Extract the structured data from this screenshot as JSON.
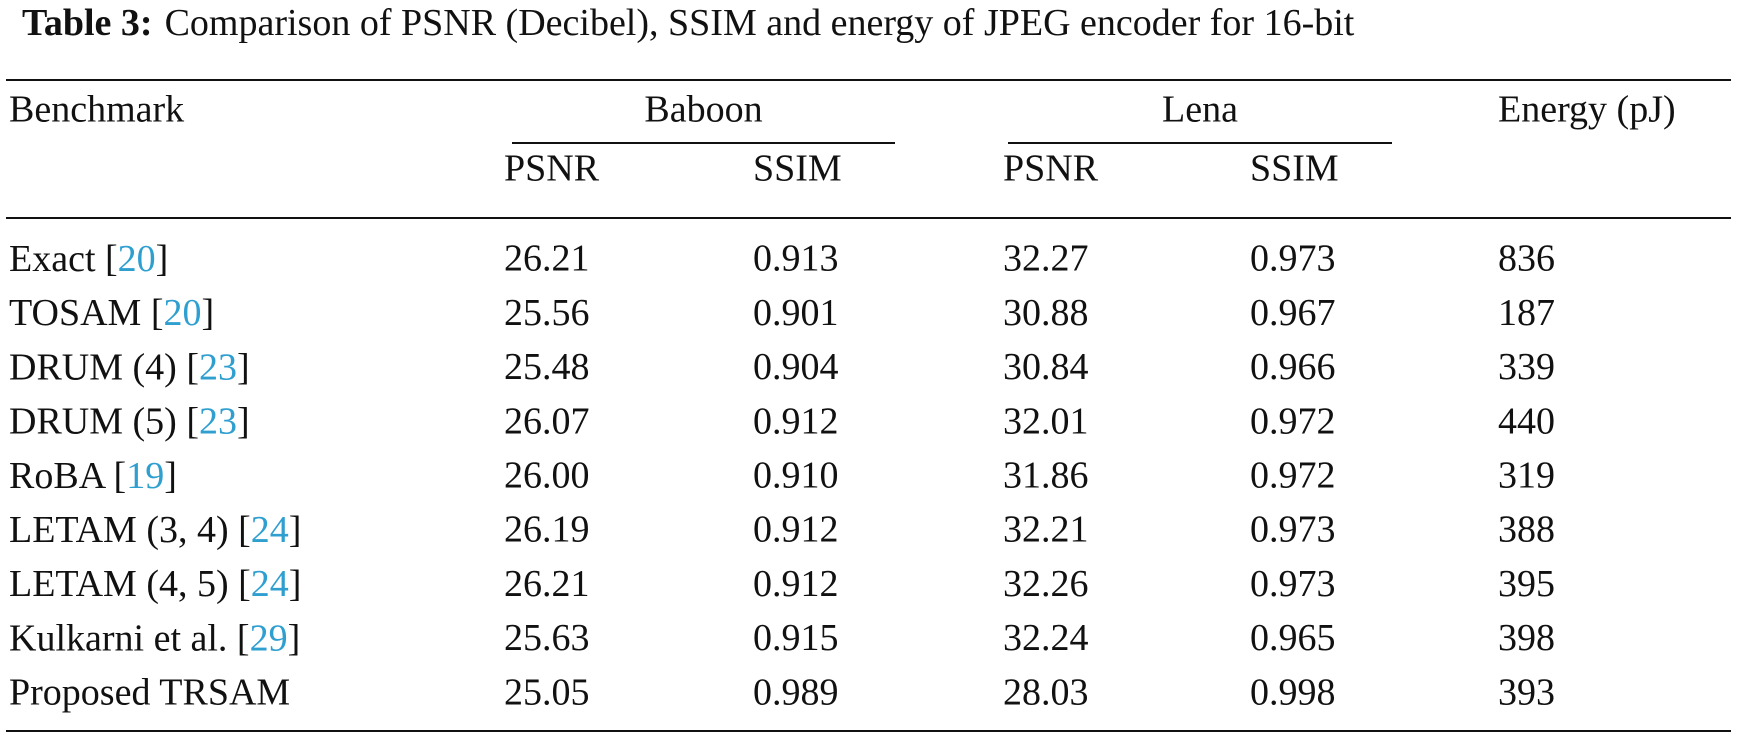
{
  "caption": {
    "label": "Table 3:",
    "text": "Comparison of PSNR (Decibel), SSIM and energy of JPEG encoder for 16-bit"
  },
  "table": {
    "header": {
      "benchmark": "Benchmark",
      "groups": [
        {
          "name": "Baboon",
          "columns": [
            "PSNR",
            "SSIM"
          ]
        },
        {
          "name": "Lena",
          "columns": [
            "PSNR",
            "SSIM"
          ]
        }
      ],
      "energy": "Energy (pJ)"
    },
    "rows": [
      {
        "label": [
          "Exact [",
          "20",
          "]"
        ],
        "values": [
          "26.21",
          "0.913",
          "32.27",
          "0.973",
          "836"
        ]
      },
      {
        "label": [
          "TOSAM [",
          "20",
          "]"
        ],
        "values": [
          "25.56",
          "0.901",
          "30.88",
          "0.967",
          "187"
        ]
      },
      {
        "label": [
          "DRUM (4) [",
          "23",
          "]"
        ],
        "values": [
          "25.48",
          "0.904",
          "30.84",
          "0.966",
          "339"
        ]
      },
      {
        "label": [
          "DRUM (5) [",
          "23",
          "]"
        ],
        "values": [
          "26.07",
          "0.912",
          "32.01",
          "0.972",
          "440"
        ]
      },
      {
        "label": [
          "RoBA [",
          "19",
          "]"
        ],
        "values": [
          "26.00",
          "0.910",
          "31.86",
          "0.972",
          "319"
        ]
      },
      {
        "label": [
          "LETAM (3, 4) [",
          "24",
          "]"
        ],
        "values": [
          "26.19",
          "0.912",
          "32.21",
          "0.973",
          "388"
        ]
      },
      {
        "label": [
          "LETAM (4, 5) [",
          "24",
          "]"
        ],
        "values": [
          "26.21",
          "0.912",
          "32.26",
          "0.973",
          "395"
        ]
      },
      {
        "label": [
          "Kulkarni et al. [",
          "29",
          "]"
        ],
        "values": [
          "25.63",
          "0.915",
          "32.24",
          "0.965",
          "398"
        ]
      },
      {
        "label": [
          "Proposed TRSAM"
        ],
        "values": [
          "25.05",
          "0.989",
          "28.03",
          "0.998",
          "393"
        ]
      }
    ]
  }
}
